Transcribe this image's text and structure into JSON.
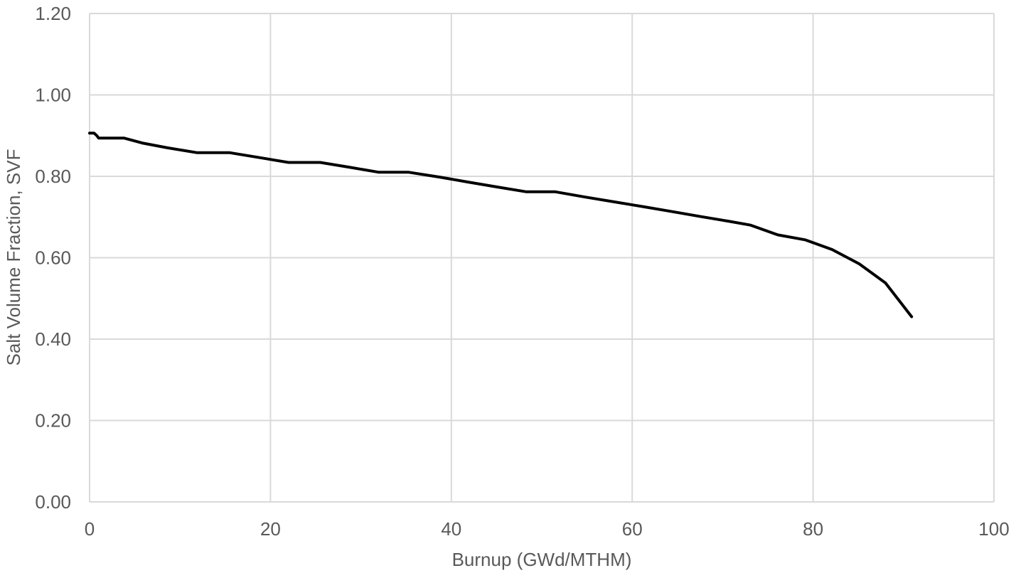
{
  "chart_data": {
    "type": "line",
    "title": "",
    "xlabel": "Burnup (GWd/MTHM)",
    "ylabel": "Salt Volume Fraction, SVF",
    "xlim": [
      0,
      100
    ],
    "ylim": [
      0,
      1.2
    ],
    "x_ticks": [
      0,
      20,
      40,
      60,
      80,
      100
    ],
    "y_ticks": [
      0,
      0.2,
      0.4,
      0.6,
      0.8,
      1.0,
      1.2
    ],
    "x_tick_labels": [
      "0",
      "20",
      "40",
      "60",
      "80",
      "100"
    ],
    "y_tick_labels": [
      "0.00",
      "0.20",
      "0.40",
      "0.60",
      "0.80",
      "1.00",
      "1.20"
    ],
    "grid": true,
    "legend": "none",
    "line_color": "#000000",
    "grid_color": "#d9d9d9",
    "series": [
      {
        "x": [
          0,
          0.5,
          0.8,
          1.0,
          2.0,
          3.8,
          5.8,
          8.6,
          11.9,
          15.5,
          18.8,
          22.0,
          25.5,
          28.8,
          32.0,
          35.3,
          38.7,
          41.8,
          45.0,
          48.3,
          51.5,
          54.8,
          58.1,
          61.3,
          64.5,
          67.6,
          70.8,
          73.1,
          76.1,
          79.1,
          82.1,
          85.1,
          88.0,
          90.9
        ],
        "y": [
          0.906,
          0.906,
          0.9,
          0.894,
          0.894,
          0.894,
          0.882,
          0.87,
          0.858,
          0.858,
          0.846,
          0.834,
          0.834,
          0.822,
          0.81,
          0.81,
          0.798,
          0.786,
          0.774,
          0.762,
          0.762,
          0.749,
          0.737,
          0.725,
          0.713,
          0.701,
          0.689,
          0.68,
          0.656,
          0.644,
          0.62,
          0.585,
          0.538,
          0.455
        ]
      }
    ]
  }
}
